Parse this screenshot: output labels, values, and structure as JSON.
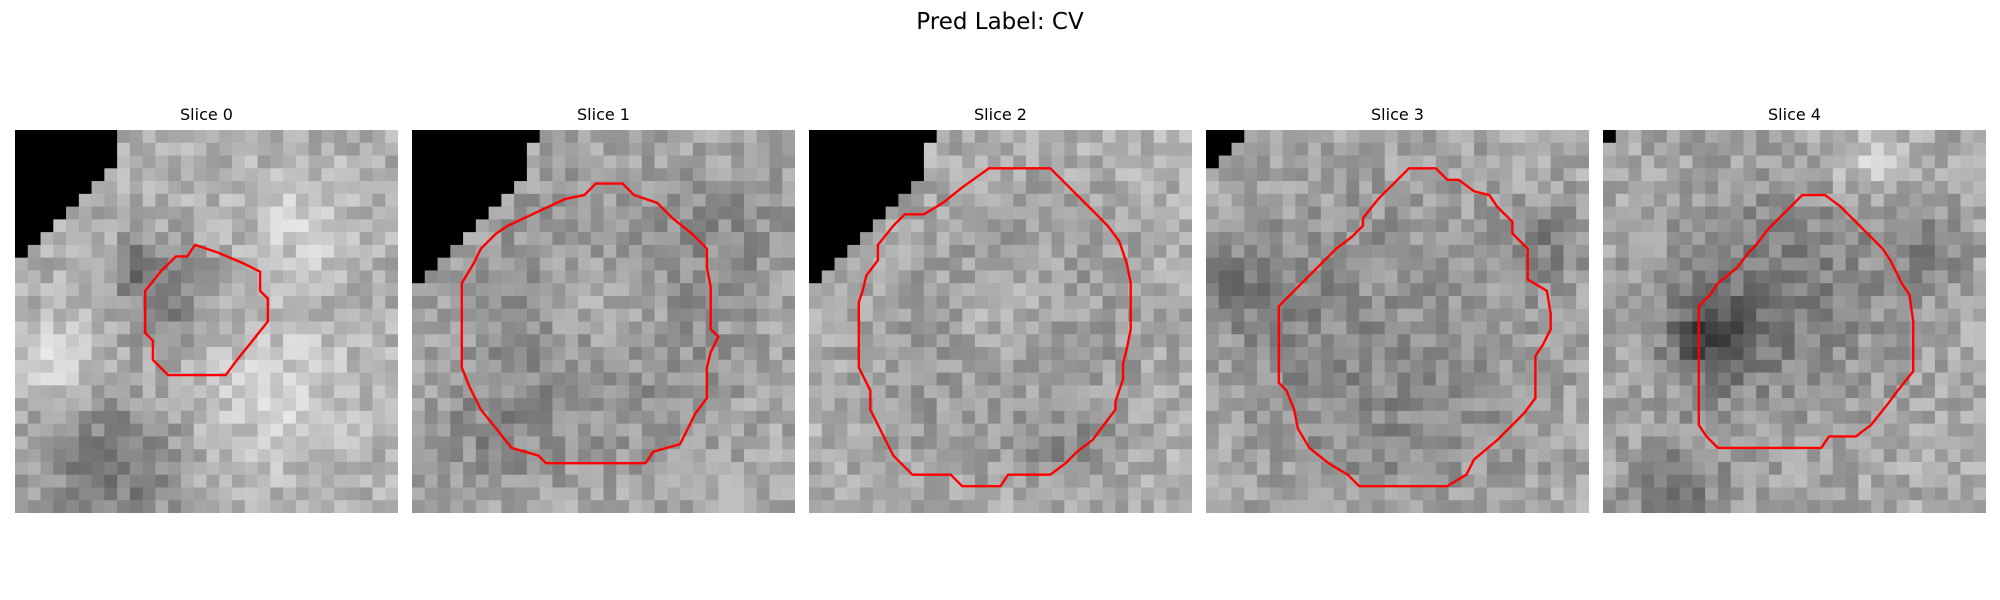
{
  "figure": {
    "title": "Pred Label: CV",
    "panels": [
      {
        "title": "Slice 0",
        "content": "grayscale MRI patch with red contour around dark round region"
      },
      {
        "title": "Slice 1",
        "content": "grayscale MRI patch with red contour around bright round region"
      },
      {
        "title": "Slice 2",
        "content": "grayscale MRI patch with red contour around large round region"
      },
      {
        "title": "Slice 3",
        "content": "grayscale MRI patch with red contour around round region"
      },
      {
        "title": "Slice 4",
        "content": "grayscale MRI patch with red contour around round region"
      }
    ],
    "contour_color": "#ff0000",
    "colormap": "grayscale"
  }
}
